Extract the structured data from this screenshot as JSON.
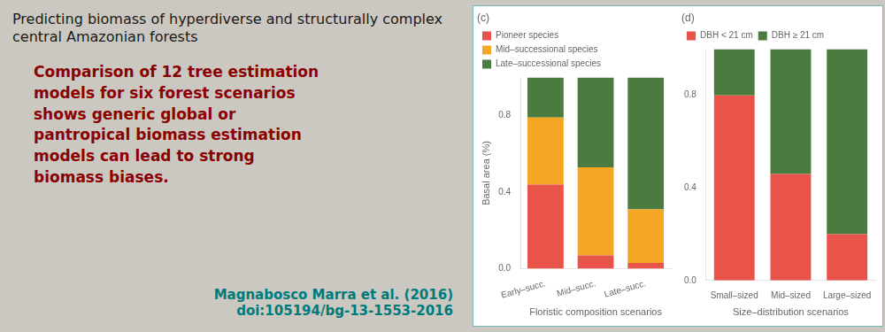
{
  "title": "Predicting biomass of hyperdiverse and structurally complex\ncentral Amazonian forests",
  "subtitle": "Comparison of 12 tree estimation\nmodels for six forest scenarios\nshows generic global or\npantropical biomass estimation\nmodels can lead to strong\nbiomass biases.",
  "annotations": [
    "Magnabosco Marra et al. (2016)",
    "doi:105194/bg-13-1553-2016"
  ],
  "chart_data": [
    {
      "type": "bar",
      "title": "(c)",
      "stacked": true,
      "grid": false,
      "legend": "top",
      "categories": [
        "Early–succ.",
        "Mid–succ.",
        "Late–succ."
      ],
      "xlabel": "Floristic composition scenarios",
      "ylabel": "Basal area (%)",
      "ylim": [
        0.0,
        1.0
      ],
      "yticks": [
        {
          "value": 0.0,
          "label": "0.0"
        },
        0.4,
        0.8
      ],
      "series": [
        {
          "name": "Pioneer species",
          "color": "#E8534A",
          "values": [
            0.44,
            0.07,
            0.03
          ]
        },
        {
          "name": "Mid–successional species",
          "color": "#F5A623",
          "values": [
            0.35,
            0.46,
            0.28
          ]
        },
        {
          "name": "Late–successional species",
          "color": "#4A7C3F",
          "values": [
            0.21,
            0.47,
            0.69
          ]
        }
      ]
    },
    {
      "type": "bar",
      "title": "(d)",
      "stacked": true,
      "grid": false,
      "legend": "top",
      "categories": [
        "Small–sized",
        "Mid–sized",
        "Large–sized"
      ],
      "xlabel": "Size–distribution scenarios",
      "ylim": [
        0.0,
        1.0
      ],
      "yticks": [
        {
          "value": 0.0,
          "label": "0.0"
        },
        0.4,
        0.8
      ],
      "series": [
        {
          "name": "DBH < 21 cm",
          "color": "#E8534A",
          "values": [
            0.8,
            0.46,
            0.2
          ]
        },
        {
          "name": "DBH ≥ 21 cm",
          "color": "#4A7C3F",
          "values": [
            0.2,
            0.54,
            0.8
          ]
        }
      ]
    }
  ]
}
